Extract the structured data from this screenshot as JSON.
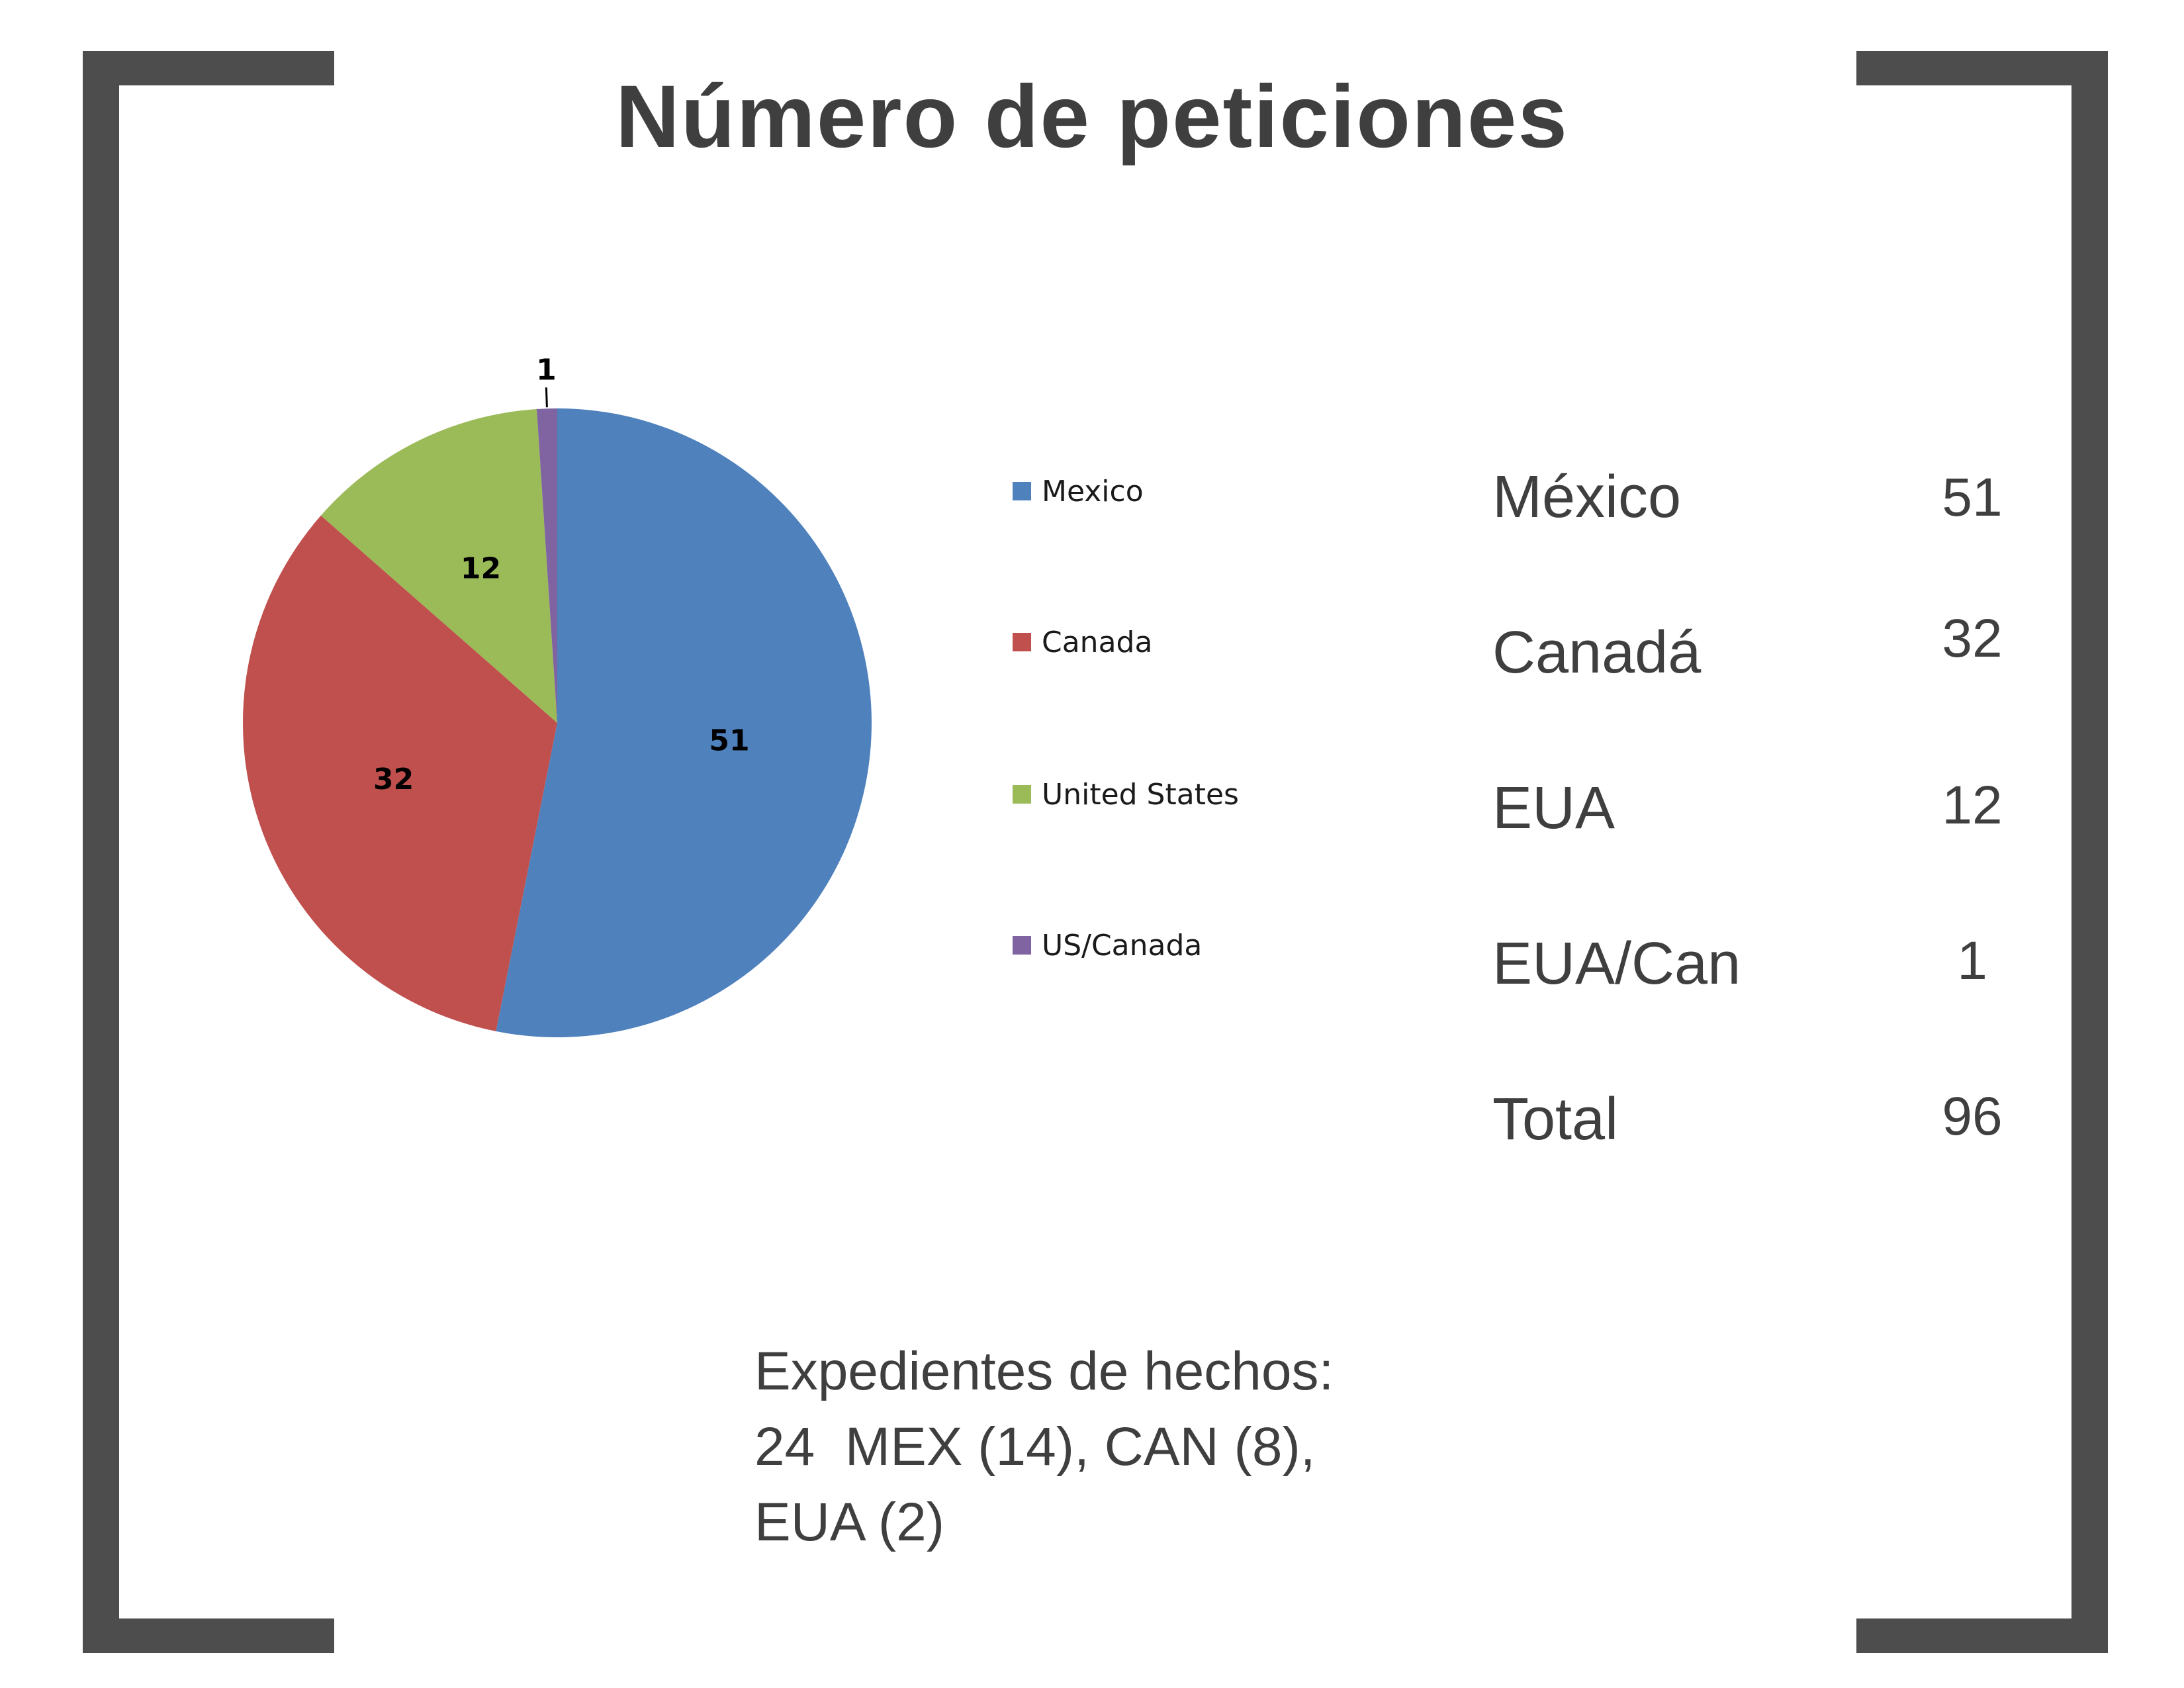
{
  "chart_data": {
    "type": "pie",
    "title": "Número de peticiones",
    "categories": [
      "Mexico",
      "Canada",
      "United States",
      "US/Canada"
    ],
    "values": [
      51,
      32,
      12,
      1
    ],
    "colors": [
      "#4f81bd",
      "#c0504d",
      "#9bbb59",
      "#8064a2"
    ],
    "data_labels": [
      "51",
      "32",
      "12",
      "1"
    ],
    "legend": "right",
    "start": "top, clockwise"
  },
  "summary_table": [
    {
      "label": "México",
      "value": "51"
    },
    {
      "label": "Canadá",
      "value": "32"
    },
    {
      "label": "EUA",
      "value": "12"
    },
    {
      "label": "EUA/Can",
      "value": "1"
    },
    {
      "label": "Total",
      "value": "96"
    }
  ],
  "note": {
    "line1": "Expedientes de hechos:",
    "line2": "24  MEX (14), CAN (8),",
    "line3": "EUA (2)"
  }
}
